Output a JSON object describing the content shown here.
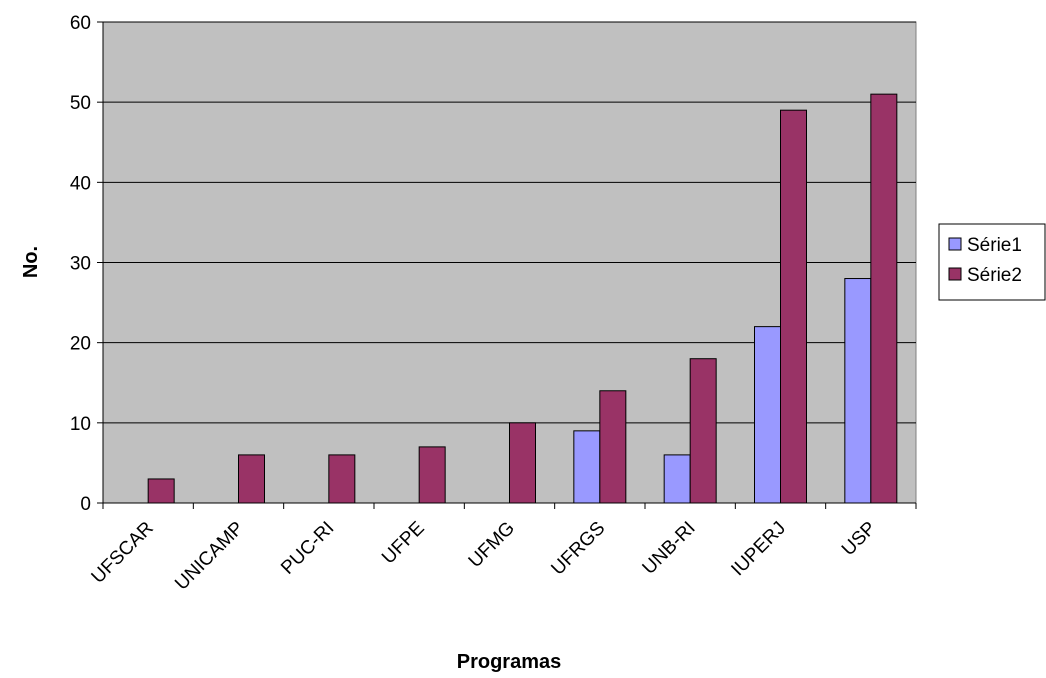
{
  "chart_data": {
    "type": "bar",
    "categories": [
      "UFSCAR",
      "UNICAMP",
      "PUC-RI",
      "UFPE",
      "UFMG",
      "UFRGS",
      "UNB-RI",
      "IUPERJ",
      "USP"
    ],
    "series": [
      {
        "name": "Série1",
        "values": [
          0,
          0,
          0,
          0,
          0,
          9,
          6,
          22,
          28
        ],
        "color": "#9999ff"
      },
      {
        "name": "Série2",
        "values": [
          3,
          6,
          6,
          7,
          10,
          14,
          18,
          49,
          51
        ],
        "color": "#993366"
      }
    ],
    "xlabel": "Programas",
    "ylabel": "No.",
    "ylim": [
      0,
      60
    ],
    "yticks": [
      0,
      10,
      20,
      30,
      40,
      50,
      60
    ],
    "grid": true,
    "legend": "right",
    "plot_background": "#c0c0c0"
  }
}
